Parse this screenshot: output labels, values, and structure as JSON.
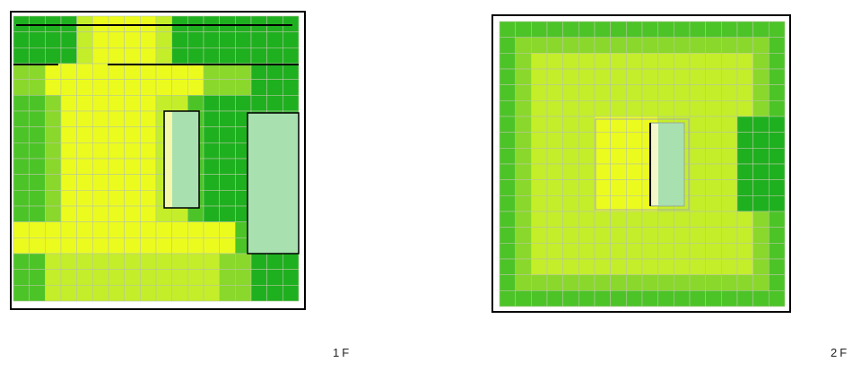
{
  "plans": [
    {
      "label": "1F"
    },
    {
      "label": "2F"
    }
  ]
}
